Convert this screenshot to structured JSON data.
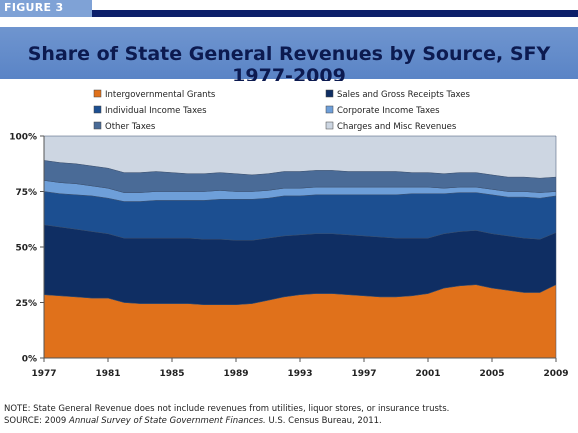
{
  "figure_label": "FIGURE 3",
  "title": "Share of State General Revenues by Source, SFY 1977-2009",
  "note": "NOTE: State General Revenue does not include revenues from utilities, liquor stores, or insurance trusts.",
  "source_prefix": "SOURCE: 2009 ",
  "source_italic": "Annual Survey of State Government Finances.",
  "source_suffix": " U.S. Census Bureau, 2011.",
  "chart_data": {
    "type": "area",
    "stacked": true,
    "title": "Share of State General Revenues by Source, SFY 1977-2009",
    "xlabel": "",
    "ylabel": "",
    "x": [
      1977,
      1978,
      1979,
      1980,
      1981,
      1982,
      1983,
      1984,
      1985,
      1986,
      1987,
      1988,
      1989,
      1990,
      1991,
      1992,
      1993,
      1994,
      1995,
      1996,
      1997,
      1998,
      1999,
      2000,
      2001,
      2002,
      2003,
      2004,
      2005,
      2006,
      2007,
      2008,
      2009
    ],
    "xticks": [
      "1977",
      "1981",
      "1985",
      "1989",
      "1993",
      "1997",
      "2001",
      "2005",
      "2009"
    ],
    "yticks": [
      "0%",
      "25%",
      "50%",
      "75%",
      "100%"
    ],
    "ylim": [
      0,
      100
    ],
    "legend_position": "top",
    "series": [
      {
        "name": "Intergovernmental Grants",
        "color": "#e0711b",
        "values": [
          28.5,
          28,
          27.5,
          27,
          27,
          25,
          24.5,
          24.5,
          24.5,
          24.5,
          24,
          24,
          24,
          24.5,
          26,
          27.5,
          28.5,
          29,
          29,
          28.5,
          28,
          27.5,
          27.5,
          28,
          29,
          31.5,
          32.5,
          33,
          31.5,
          30.5,
          29.5,
          29.5,
          33
        ]
      },
      {
        "name": "Sales and Gross Receipts Taxes",
        "color": "#0f2e63",
        "values": [
          31.5,
          31,
          30.5,
          30,
          29,
          29,
          29.5,
          29.5,
          29.5,
          29.5,
          29.5,
          29.5,
          29,
          28.5,
          28,
          27.5,
          27,
          27,
          27,
          27,
          27,
          27,
          26.5,
          26,
          25,
          24.5,
          24.5,
          24.5,
          24.5,
          24.5,
          24.5,
          24,
          23.5
        ]
      },
      {
        "name": "Individual Income Taxes",
        "color": "#1c4f91",
        "values": [
          15,
          15,
          15.5,
          16,
          16,
          16.5,
          16.5,
          17,
          17,
          17,
          17.5,
          18,
          18.5,
          18.5,
          18,
          18,
          17.5,
          17.5,
          17.5,
          18,
          18.5,
          19,
          19.5,
          20,
          20,
          18,
          17.5,
          17,
          17.5,
          17.5,
          18.5,
          18.5,
          16.5
        ]
      },
      {
        "name": "Corporate Income Taxes",
        "color": "#6e9fd9",
        "values": [
          5,
          5,
          5,
          4.5,
          4.5,
          4,
          4,
          4,
          4,
          4,
          4,
          4,
          3.5,
          3.5,
          3.5,
          3.5,
          3.5,
          3.5,
          3.5,
          3.5,
          3.5,
          3.5,
          3.5,
          3,
          3,
          2.5,
          2.5,
          2.5,
          2.5,
          2.5,
          2.5,
          2.5,
          2
        ]
      },
      {
        "name": "Other Taxes",
        "color": "#4a6b97",
        "values": [
          9,
          9,
          9,
          9,
          9,
          9,
          9,
          9,
          8.5,
          8,
          8,
          8,
          8,
          7.5,
          7.5,
          7.5,
          7.5,
          7.5,
          7.5,
          7,
          7,
          7,
          7,
          6.5,
          6.5,
          6.5,
          6.5,
          6.5,
          6.5,
          6.5,
          6.5,
          6.5,
          6.5
        ]
      },
      {
        "name": "Charges and Misc Revenues",
        "color": "#cdd6e2",
        "values": [
          11,
          12,
          12.5,
          13.5,
          14.5,
          16.5,
          16.5,
          16,
          16.5,
          17,
          17,
          16.5,
          17,
          17.5,
          17,
          16,
          16,
          15.5,
          15.5,
          16,
          16,
          16,
          16,
          16.5,
          16.5,
          17,
          16.5,
          16.5,
          17.5,
          18.5,
          18.5,
          19,
          18.5
        ]
      }
    ]
  }
}
